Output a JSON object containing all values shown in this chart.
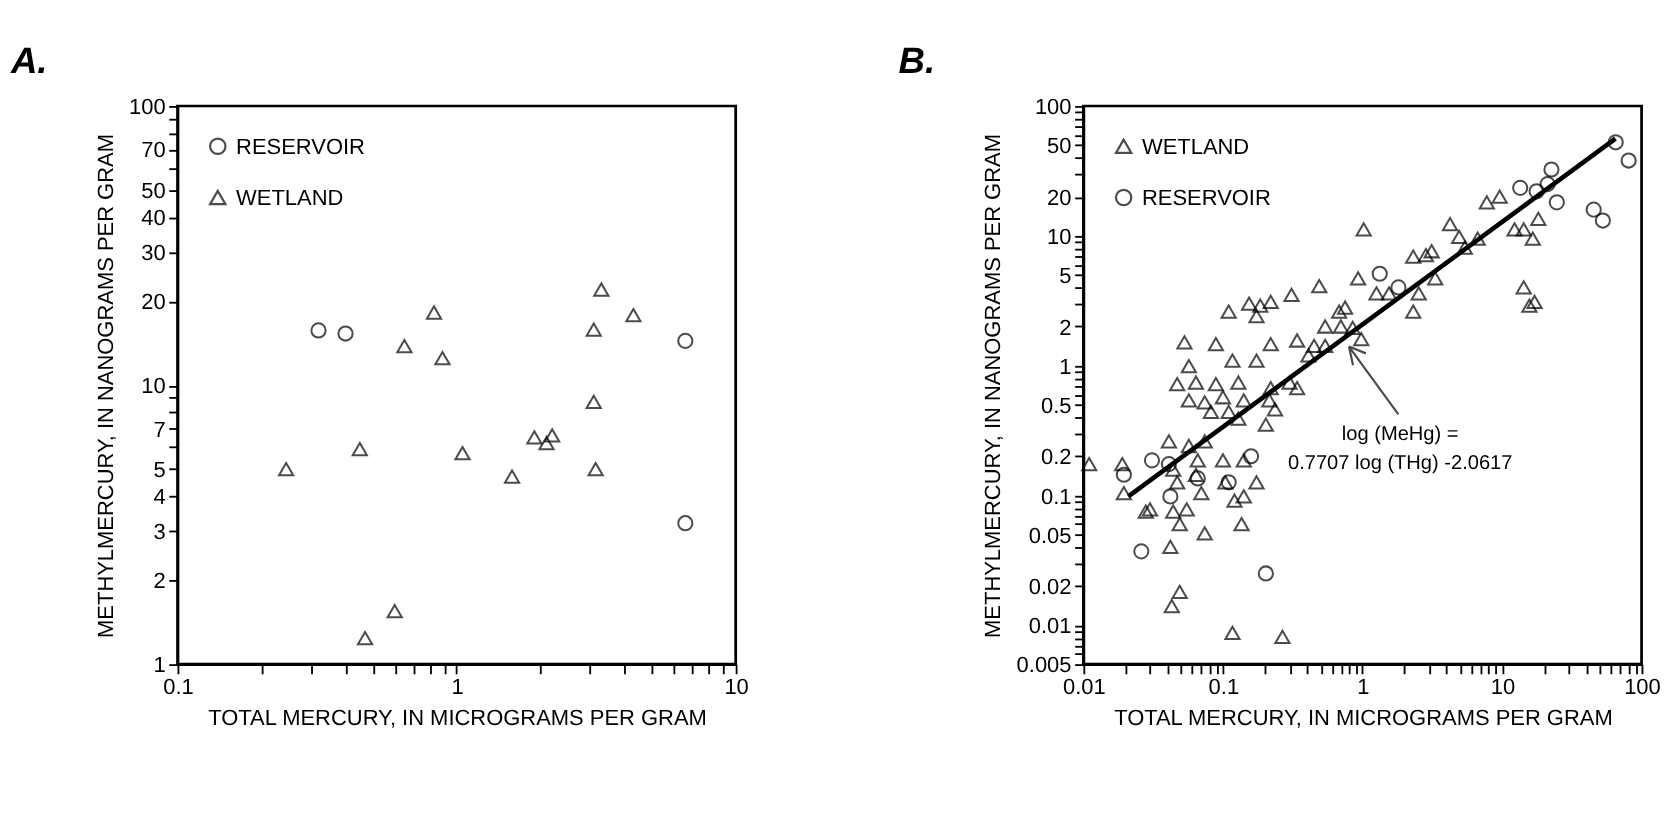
{
  "chart_data": [
    {
      "type": "scatter",
      "title": "A.",
      "xlabel": "TOTAL MERCURY, IN MICROGRAMS PER GRAM",
      "ylabel": "METHYLMERCURY, IN NANOGRAMS PER GRAM",
      "log": "xy",
      "grid": false,
      "legend": "top left",
      "xlim": [
        0.1,
        10
      ],
      "ylim": [
        1,
        100
      ],
      "xticks": [
        0.1,
        {
          "value": 0.2,
          "label": null
        },
        {
          "value": 0.3,
          "label": null
        },
        {
          "value": 0.4,
          "label": null
        },
        {
          "value": 0.5,
          "label": null
        },
        {
          "value": 0.6,
          "label": null
        },
        {
          "value": 0.7,
          "label": null
        },
        {
          "value": 0.8,
          "label": null
        },
        {
          "value": 0.9,
          "label": null
        },
        1,
        {
          "value": 2,
          "label": null
        },
        {
          "value": 3,
          "label": null
        },
        {
          "value": 4,
          "label": null
        },
        {
          "value": 5,
          "label": null
        },
        {
          "value": 6,
          "label": null
        },
        {
          "value": 7,
          "label": null
        },
        {
          "value": 8,
          "label": null
        },
        {
          "value": 9,
          "label": null
        },
        10
      ],
      "yticks": [
        1,
        2,
        3,
        4,
        5,
        {
          "value": 6,
          "label": null
        },
        7,
        {
          "value": 8,
          "label": null
        },
        {
          "value": 9,
          "label": null
        },
        10,
        20,
        30,
        40,
        50,
        {
          "value": 60,
          "label": null
        },
        70,
        {
          "value": 80,
          "label": null
        },
        {
          "value": 90,
          "label": null
        },
        100
      ],
      "series": [
        {
          "name": "RESERVOIR",
          "type": "scatter",
          "marker": "circle",
          "color": "#000000",
          "x": [
            0.32,
            0.4,
            6.6,
            6.6
          ],
          "values": [
            15.7,
            15.3,
            14.4,
            3.2
          ]
        },
        {
          "name": "WETLAND",
          "type": "scatter",
          "marker": "triangle",
          "color": "#000000",
          "x": [
            0.245,
            0.45,
            0.47,
            0.6,
            0.65,
            0.83,
            0.89,
            1.05,
            1.58,
            1.9,
            2.1,
            2.2,
            3.1,
            3.3,
            3.1,
            3.15,
            4.3
          ],
          "values": [
            5.0,
            5.9,
            1.24,
            1.55,
            13.8,
            18.2,
            12.5,
            5.7,
            4.7,
            6.5,
            6.2,
            6.6,
            15.8,
            22,
            8.7,
            5.0,
            17.8
          ]
        }
      ]
    },
    {
      "type": "scatter",
      "title": "B.",
      "xlabel": "TOTAL MERCURY, IN MICROGRAMS PER GRAM",
      "ylabel": "METHYLMERCURY, IN NANOGRAMS PER GRAM",
      "log": "xy",
      "grid": false,
      "legend": "top left",
      "xlim": [
        0.01,
        100
      ],
      "ylim": [
        0.005,
        100
      ],
      "xticks": [
        0.01,
        {
          "value": 0.02,
          "label": null
        },
        {
          "value": 0.03,
          "label": null
        },
        {
          "value": 0.04,
          "label": null
        },
        {
          "value": 0.05,
          "label": null
        },
        {
          "value": 0.06,
          "label": null
        },
        {
          "value": 0.07,
          "label": null
        },
        {
          "value": 0.08,
          "label": null
        },
        {
          "value": 0.09,
          "label": null
        },
        0.1,
        {
          "value": 0.2,
          "label": null
        },
        {
          "value": 0.3,
          "label": null
        },
        {
          "value": 0.4,
          "label": null
        },
        {
          "value": 0.5,
          "label": null
        },
        {
          "value": 0.6,
          "label": null
        },
        {
          "value": 0.7,
          "label": null
        },
        {
          "value": 0.8,
          "label": null
        },
        {
          "value": 0.9,
          "label": null
        },
        1,
        {
          "value": 2,
          "label": null
        },
        {
          "value": 3,
          "label": null
        },
        {
          "value": 4,
          "label": null
        },
        {
          "value": 5,
          "label": null
        },
        {
          "value": 6,
          "label": null
        },
        {
          "value": 7,
          "label": null
        },
        {
          "value": 8,
          "label": null
        },
        {
          "value": 9,
          "label": null
        },
        10,
        {
          "value": 20,
          "label": null
        },
        {
          "value": 30,
          "label": null
        },
        {
          "value": 40,
          "label": null
        },
        {
          "value": 50,
          "label": null
        },
        {
          "value": 60,
          "label": null
        },
        {
          "value": 70,
          "label": null
        },
        {
          "value": 80,
          "label": null
        },
        {
          "value": 90,
          "label": null
        },
        100
      ],
      "yticks": [
        0.005,
        {
          "value": 0.006,
          "label": null
        },
        {
          "value": 0.007,
          "label": null
        },
        {
          "value": 0.008,
          "label": null
        },
        {
          "value": 0.009,
          "label": null
        },
        0.01,
        0.02,
        {
          "value": 0.03,
          "label": null
        },
        {
          "value": 0.04,
          "label": null
        },
        0.05,
        {
          "value": 0.06,
          "label": null
        },
        {
          "value": 0.07,
          "label": null
        },
        {
          "value": 0.08,
          "label": null
        },
        {
          "value": 0.09,
          "label": null
        },
        0.1,
        0.2,
        {
          "value": 0.3,
          "label": null
        },
        {
          "value": 0.4,
          "label": null
        },
        0.5,
        {
          "value": 0.6,
          "label": null
        },
        {
          "value": 0.7,
          "label": null
        },
        {
          "value": 0.8,
          "label": null
        },
        {
          "value": 0.9,
          "label": null
        },
        1,
        2,
        {
          "value": 3,
          "label": null
        },
        {
          "value": 4,
          "label": null
        },
        5,
        {
          "value": 6,
          "label": null
        },
        {
          "value": 7,
          "label": null
        },
        {
          "value": 8,
          "label": null
        },
        {
          "value": 9,
          "label": null
        },
        10,
        20,
        {
          "value": 30,
          "label": null
        },
        {
          "value": 40,
          "label": null
        },
        50,
        {
          "value": 60,
          "label": null
        },
        {
          "value": 70,
          "label": null
        },
        {
          "value": 80,
          "label": null
        },
        {
          "value": 90,
          "label": null
        },
        100
      ],
      "annotations": [
        {
          "text": "log (MeHg) =\n0.7707 log (THg) -2.0617",
          "x": 0.8,
          "y": 1.4
        }
      ],
      "series": [
        {
          "name": "WETLAND",
          "type": "scatter",
          "marker": "triangle",
          "color": "#000000",
          "x": [
            0.93,
            0.49,
            0.31,
            0.22,
            0.185,
            0.154,
            0.174,
            0.11,
            0.75,
            0.68,
            0.54,
            0.7,
            0.053,
            0.089,
            0.22,
            0.34,
            0.45,
            0.54,
            0.057,
            0.117,
            0.174,
            0.41,
            0.047,
            0.064,
            0.089,
            0.129,
            0.057,
            0.074,
            0.1,
            0.141,
            0.22,
            0.3,
            0.34,
            0.082,
            0.11,
            0.129,
            0.215,
            0.236,
            0.203,
            0.041,
            0.057,
            0.074,
            0.019,
            0.011,
            0.044,
            0.066,
            0.1,
            0.141,
            0.0195,
            0.03,
            0.047,
            0.064,
            0.07,
            0.104,
            0.121,
            0.141,
            0.174,
            0.028,
            0.044,
            0.049,
            0.055,
            0.074,
            0.136,
            0.042,
            0.049,
            0.043,
            0.117,
            0.267,
            1.02,
            1.26,
            1.55,
            2.31,
            2.85,
            3.13,
            2.53,
            2.31,
            3.32,
            4.24,
            4.93,
            5.41,
            6.69,
            7.78,
            9.62,
            12.3,
            14.3,
            16.6,
            18.2,
            14.3,
            15.7,
            17.1,
            0.98,
            0.85
          ],
          "values": [
            4.7,
            4.1,
            3.5,
            3.1,
            2.9,
            3.0,
            2.4,
            2.6,
            2.8,
            2.6,
            2.0,
            2.0,
            1.51,
            1.46,
            1.46,
            1.56,
            1.42,
            1.42,
            0.99,
            1.09,
            1.09,
            1.2,
            0.72,
            0.74,
            0.72,
            0.74,
            0.54,
            0.52,
            0.57,
            0.54,
            0.67,
            0.74,
            0.67,
            0.44,
            0.44,
            0.39,
            0.54,
            0.46,
            0.35,
            0.26,
            0.24,
            0.26,
            0.174,
            0.174,
            0.158,
            0.186,
            0.186,
            0.186,
            0.104,
            0.078,
            0.126,
            0.144,
            0.104,
            0.126,
            0.091,
            0.098,
            0.126,
            0.075,
            0.075,
            0.06,
            0.078,
            0.051,
            0.06,
            0.04,
            0.018,
            0.014,
            0.0087,
            0.0081,
            11.2,
            3.6,
            3.6,
            6.9,
            7.1,
            7.6,
            3.6,
            2.6,
            4.7,
            12.3,
            9.8,
            8.1,
            9.5,
            18.1,
            20.0,
            11.2,
            11.2,
            9.5,
            13.5,
            4.0,
            2.9,
            3.1,
            1.6,
            1.95
          ]
        },
        {
          "name": "RESERVOIR",
          "type": "scatter",
          "marker": "circle",
          "color": "#000000",
          "x": [
            0.031,
            0.0195,
            0.041,
            0.066,
            0.042,
            0.11,
            0.159,
            0.026,
            0.203,
            1.33,
            1.81,
            13.5,
            17.7,
            22.6,
            21.2,
            24.7,
            45.4,
            52.8,
            65.3,
            80.8
          ],
          "values": [
            0.186,
            0.144,
            0.174,
            0.135,
            0.098,
            0.126,
            0.2,
            0.037,
            0.025,
            5.1,
            4.0,
            23.4,
            22.0,
            32.4,
            25.0,
            18.1,
            15.9,
            13.1,
            52.5,
            38.0
          ]
        },
        {
          "type": "line",
          "color": "#000000",
          "line_style": "solid",
          "x": [
            0.021,
            65
          ],
          "values": [
            0.098,
            56
          ]
        }
      ]
    }
  ]
}
